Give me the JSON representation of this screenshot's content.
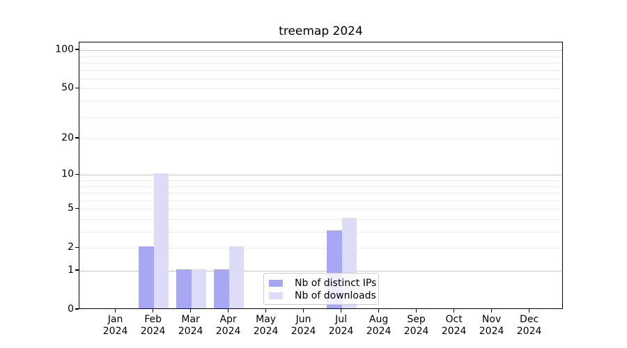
{
  "chart_data": {
    "type": "bar",
    "title": "treemap 2024",
    "categories": [
      "Jan",
      "Feb",
      "Mar",
      "Apr",
      "May",
      "Jun",
      "Jul",
      "Aug",
      "Sep",
      "Oct",
      "Nov",
      "Dec"
    ],
    "x_tick_second_line": "2024",
    "series": [
      {
        "name": "Nb of distinct IPs",
        "color": "#a7a7f4",
        "values": [
          0,
          2,
          1,
          1,
          0,
          0,
          3,
          0,
          0,
          0,
          0,
          0
        ]
      },
      {
        "name": "Nb of downloads",
        "color": "#dcdcf9",
        "values": [
          0,
          10,
          1,
          2,
          0,
          0,
          4,
          0,
          0,
          0,
          0,
          0
        ]
      }
    ],
    "yscale": "log1p",
    "ylim": [
      0,
      115
    ],
    "yticks": [
      0,
      1,
      2,
      5,
      10,
      20,
      50,
      100
    ],
    "grid": {
      "major": [
        1,
        10,
        100
      ],
      "minor": [
        2,
        3,
        4,
        5,
        6,
        7,
        8,
        9,
        20,
        30,
        40,
        50,
        60,
        70,
        80,
        90
      ]
    },
    "legend_position": "lower center, inside plot",
    "colors": {
      "grid_major": "#c5c5c5",
      "grid_minor": "#ebebeb",
      "axis": "#000000",
      "legend_border": "#cccccc",
      "background": "#ffffff"
    }
  }
}
